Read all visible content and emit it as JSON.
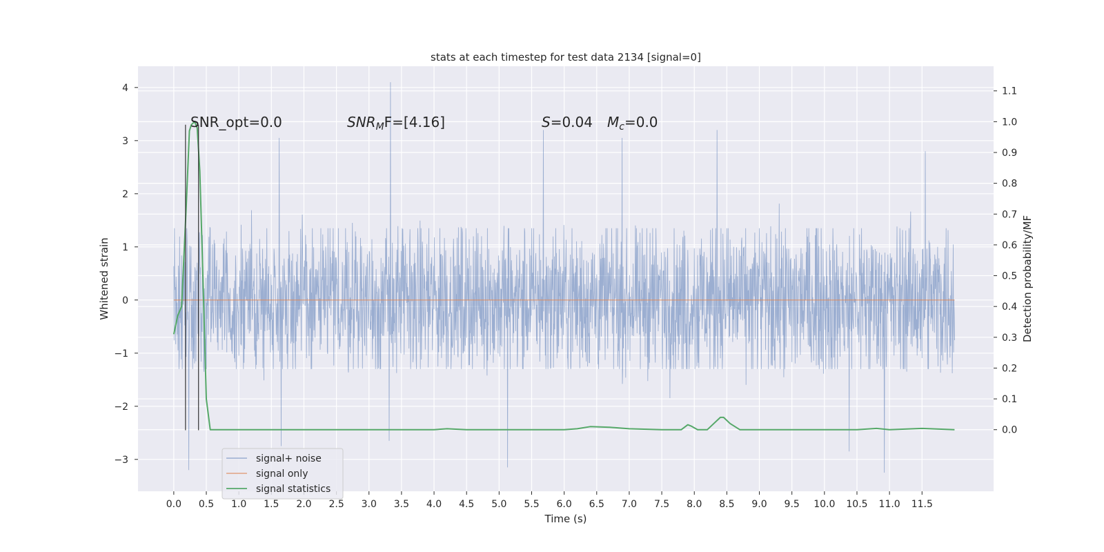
{
  "chart_data": {
    "type": "line",
    "title": "stats at each timestep for test data 2134 [signal=0]",
    "xlabel": "Time (s)",
    "ylabel_left": "Whitened strain",
    "ylabel_right": "Detection probability/MF",
    "xlim": [
      -0.55,
      12.6
    ],
    "ylim_left": [
      -3.6,
      4.4
    ],
    "ylim_right": [
      -0.2,
      1.18
    ],
    "grid": true,
    "legend_position": "lower-left",
    "x_ticks": [
      "0.0",
      "0.5",
      "1.0",
      "1.5",
      "2.0",
      "2.5",
      "3.0",
      "3.5",
      "4.0",
      "4.5",
      "5.0",
      "5.5",
      "6.0",
      "6.5",
      "7.0",
      "7.5",
      "8.0",
      "8.5",
      "9.0",
      "9.5",
      "10.0",
      "10.5",
      "11.0",
      "11.5"
    ],
    "y_ticks_left": [
      "4",
      "3",
      "2",
      "1",
      "0",
      "−1",
      "−2",
      "−3"
    ],
    "y_ticks_right": [
      "1.1",
      "1.0",
      "0.9",
      "0.8",
      "0.7",
      "0.6",
      "0.5",
      "0.4",
      "0.3",
      "0.2",
      "0.1",
      "0.0"
    ],
    "annotations": {
      "snr_opt": "SNR_opt=0.0",
      "snr_mf_prefix": "SNR",
      "snr_mf_sub": "M",
      "snr_mf_suffix": "F=[4.16]",
      "s_label": "S",
      "s_value": "=0.04",
      "mc_label": "M",
      "mc_sub": "c",
      "mc_value": "=0.0"
    },
    "series": [
      {
        "name": "signal+ noise",
        "color": "#4c72b0",
        "axis": "left",
        "description": "noise strain, dense band roughly ±1.5, peaks to about ±3",
        "x_range": [
          0.0,
          12.0
        ],
        "peaks": [
          {
            "x": 3.33,
            "y": 4.1
          },
          {
            "x": 5.68,
            "y": 3.2
          },
          {
            "x": 6.89,
            "y": 3.05
          },
          {
            "x": 1.62,
            "y": 3.05
          },
          {
            "x": 8.35,
            "y": 3.2
          },
          {
            "x": 11.55,
            "y": 2.8
          },
          {
            "x": 0.23,
            "y": -3.2
          },
          {
            "x": 5.13,
            "y": -3.15
          },
          {
            "x": 10.92,
            "y": -3.25
          },
          {
            "x": 1.65,
            "y": -2.75
          },
          {
            "x": 10.38,
            "y": -2.85
          },
          {
            "x": 3.31,
            "y": -2.65
          }
        ]
      },
      {
        "name": "signal only",
        "color": "#dd8452",
        "axis": "left",
        "x": [
          0.0,
          12.0
        ],
        "y": [
          0.0,
          0.0
        ]
      },
      {
        "name": "signal statistics",
        "color": "#55a868",
        "axis": "right",
        "x": [
          0.0,
          0.06,
          0.12,
          0.19,
          0.24,
          0.27,
          0.32,
          0.36,
          0.4,
          0.44,
          0.5,
          0.56,
          1.0,
          2.0,
          3.0,
          4.0,
          4.2,
          4.5,
          5.0,
          6.0,
          6.2,
          6.4,
          6.7,
          7.0,
          7.5,
          7.8,
          7.9,
          7.95,
          8.05,
          8.2,
          8.3,
          8.4,
          8.45,
          8.55,
          8.7,
          9.0,
          10.0,
          10.5,
          10.8,
          11.0,
          11.5,
          12.0
        ],
        "y": [
          0.31,
          0.37,
          0.4,
          0.72,
          0.97,
          0.99,
          1.0,
          0.98,
          0.84,
          0.55,
          0.1,
          0.0,
          0.0,
          0.0,
          0.0,
          0.0,
          0.003,
          0.0,
          0.0,
          0.0,
          0.003,
          0.01,
          0.008,
          0.003,
          0.0,
          0.0,
          0.016,
          0.012,
          0.0,
          0.0,
          0.02,
          0.04,
          0.04,
          0.02,
          0.0,
          0.0,
          0.0,
          0.0,
          0.004,
          0.0,
          0.004,
          0.0
        ]
      }
    ],
    "vertical_markers": [
      0.18,
      0.38
    ],
    "vertical_marker_range": [
      -2.45,
      3.3
    ]
  }
}
